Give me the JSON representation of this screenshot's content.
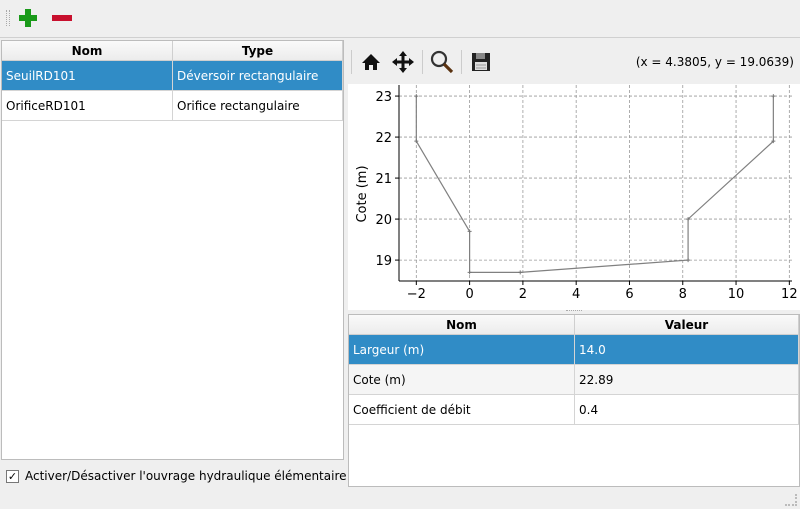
{
  "toolbar": {
    "add_icon": "plus-icon",
    "remove_icon": "minus-icon",
    "colors": {
      "add": "#1a9a1a",
      "remove": "#c8102e"
    }
  },
  "structures_table": {
    "columns": [
      "Nom",
      "Type"
    ],
    "rows": [
      {
        "nom": "SeuilRD101",
        "type": "Déversoir rectangulaire",
        "selected": true
      },
      {
        "nom": "OrificeRD101",
        "type": "Orifice rectangulaire",
        "selected": false
      }
    ]
  },
  "toggle": {
    "checked": true,
    "check_mark": "✓",
    "label": "Activer/Désactiver l'ouvrage hydraulique élémentaire"
  },
  "plot_toolbar": {
    "icons": [
      "home-icon",
      "pan-icon",
      "zoom-icon",
      "save-icon"
    ],
    "coords": "(x = 4.3805,   y = 19.0639)"
  },
  "chart_data": {
    "type": "line",
    "ylabel": "Cote (m)",
    "xlabel": "",
    "x": [
      -2,
      -2,
      0,
      0,
      1.9,
      8.2,
      8.2,
      11.4,
      11.4
    ],
    "y": [
      23,
      21.9,
      19.7,
      18.7,
      18.7,
      19,
      20,
      21.9,
      23
    ],
    "xlim": [
      -2.65,
      12.1
    ],
    "ylim": [
      18.49,
      23.27
    ],
    "xticks": [
      -2,
      0,
      2,
      4,
      6,
      8,
      10,
      12
    ],
    "xtick_labels": [
      "−2",
      "0",
      "2",
      "4",
      "6",
      "8",
      "10",
      "12"
    ],
    "yticks": [
      19,
      20,
      21,
      22,
      23
    ],
    "ytick_labels": [
      "19",
      "20",
      "21",
      "22",
      "23"
    ],
    "grid": true,
    "line_color": "#808080"
  },
  "params_table": {
    "columns": [
      "Nom",
      "Valeur"
    ],
    "rows": [
      {
        "nom": "Largeur (m)",
        "valeur": "14.0",
        "selected": true
      },
      {
        "nom": "Cote (m)",
        "valeur": "22.89",
        "selected": false
      },
      {
        "nom": "Coefficient de débit",
        "valeur": "0.4",
        "selected": false
      }
    ]
  },
  "colors": {
    "selection": "#308cc6"
  }
}
